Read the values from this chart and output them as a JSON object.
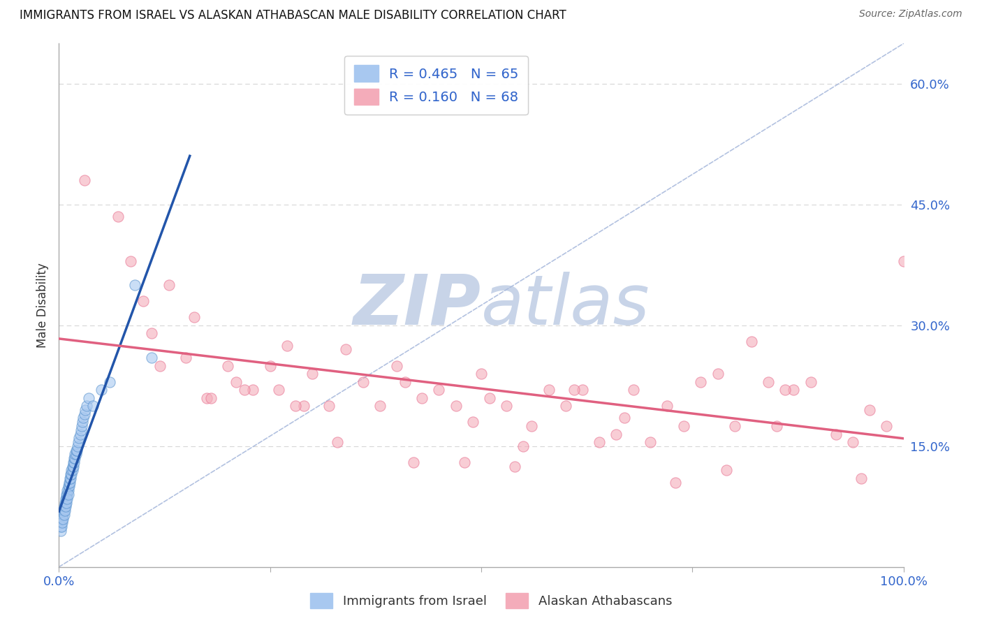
{
  "title": "IMMIGRANTS FROM ISRAEL VS ALASKAN ATHABASCAN MALE DISABILITY CORRELATION CHART",
  "source": "Source: ZipAtlas.com",
  "ylabel": "Male Disability",
  "xlim": [
    0.0,
    1.0
  ],
  "ylim": [
    0.0,
    0.65
  ],
  "ytick_positions": [
    0.15,
    0.3,
    0.45,
    0.6
  ],
  "ytick_labels": [
    "15.0%",
    "30.0%",
    "45.0%",
    "60.0%"
  ],
  "blue_R": "0.465",
  "blue_N": "65",
  "pink_R": "0.160",
  "pink_N": "68",
  "blue_color": "#A8C8F0",
  "pink_color": "#F4ACBA",
  "blue_edge_color": "#5590CC",
  "pink_edge_color": "#E87090",
  "blue_line_color": "#2255AA",
  "pink_line_color": "#E06080",
  "diag_line_color": "#AABBDD",
  "legend_label_blue": "Immigrants from Israel",
  "legend_label_pink": "Alaskan Athabascans",
  "blue_scatter_x": [
    0.002,
    0.003,
    0.003,
    0.004,
    0.004,
    0.005,
    0.005,
    0.006,
    0.006,
    0.007,
    0.007,
    0.008,
    0.008,
    0.009,
    0.009,
    0.01,
    0.01,
    0.011,
    0.011,
    0.012,
    0.012,
    0.013,
    0.013,
    0.014,
    0.014,
    0.015,
    0.015,
    0.016,
    0.016,
    0.017,
    0.017,
    0.018,
    0.018,
    0.019,
    0.019,
    0.02,
    0.02,
    0.021,
    0.022,
    0.023,
    0.024,
    0.025,
    0.026,
    0.027,
    0.028,
    0.029,
    0.03,
    0.031,
    0.033,
    0.035,
    0.002,
    0.003,
    0.004,
    0.005,
    0.006,
    0.007,
    0.008,
    0.009,
    0.01,
    0.011,
    0.04,
    0.05,
    0.06,
    0.09,
    0.11
  ],
  "blue_scatter_y": [
    0.05,
    0.055,
    0.06,
    0.06,
    0.065,
    0.065,
    0.07,
    0.07,
    0.075,
    0.075,
    0.08,
    0.08,
    0.085,
    0.085,
    0.09,
    0.09,
    0.095,
    0.095,
    0.1,
    0.1,
    0.105,
    0.105,
    0.11,
    0.11,
    0.115,
    0.115,
    0.12,
    0.12,
    0.125,
    0.125,
    0.13,
    0.13,
    0.135,
    0.135,
    0.14,
    0.14,
    0.145,
    0.145,
    0.15,
    0.155,
    0.16,
    0.165,
    0.17,
    0.175,
    0.18,
    0.185,
    0.19,
    0.195,
    0.2,
    0.21,
    0.045,
    0.05,
    0.055,
    0.06,
    0.065,
    0.07,
    0.075,
    0.08,
    0.085,
    0.09,
    0.2,
    0.22,
    0.23,
    0.35,
    0.26
  ],
  "pink_scatter_x": [
    0.03,
    0.07,
    0.085,
    0.1,
    0.11,
    0.13,
    0.15,
    0.16,
    0.175,
    0.2,
    0.21,
    0.23,
    0.25,
    0.26,
    0.27,
    0.29,
    0.3,
    0.32,
    0.34,
    0.36,
    0.38,
    0.4,
    0.41,
    0.43,
    0.45,
    0.47,
    0.49,
    0.5,
    0.51,
    0.53,
    0.55,
    0.56,
    0.58,
    0.6,
    0.62,
    0.64,
    0.66,
    0.68,
    0.7,
    0.72,
    0.74,
    0.76,
    0.78,
    0.8,
    0.82,
    0.84,
    0.85,
    0.87,
    0.89,
    0.92,
    0.94,
    0.96,
    0.98,
    1.0,
    0.12,
    0.18,
    0.22,
    0.28,
    0.33,
    0.42,
    0.48,
    0.54,
    0.61,
    0.67,
    0.73,
    0.79,
    0.86,
    0.95
  ],
  "pink_scatter_y": [
    0.48,
    0.435,
    0.38,
    0.33,
    0.29,
    0.35,
    0.26,
    0.31,
    0.21,
    0.25,
    0.23,
    0.22,
    0.25,
    0.22,
    0.275,
    0.2,
    0.24,
    0.2,
    0.27,
    0.23,
    0.2,
    0.25,
    0.23,
    0.21,
    0.22,
    0.2,
    0.18,
    0.24,
    0.21,
    0.2,
    0.15,
    0.175,
    0.22,
    0.2,
    0.22,
    0.155,
    0.165,
    0.22,
    0.155,
    0.2,
    0.175,
    0.23,
    0.24,
    0.175,
    0.28,
    0.23,
    0.175,
    0.22,
    0.23,
    0.165,
    0.155,
    0.195,
    0.175,
    0.38,
    0.25,
    0.21,
    0.22,
    0.2,
    0.155,
    0.13,
    0.13,
    0.125,
    0.22,
    0.185,
    0.105,
    0.12,
    0.22,
    0.11
  ],
  "background_color": "#FFFFFF",
  "grid_color": "#CCCCCC",
  "watermark_color": "#C8D4E8"
}
